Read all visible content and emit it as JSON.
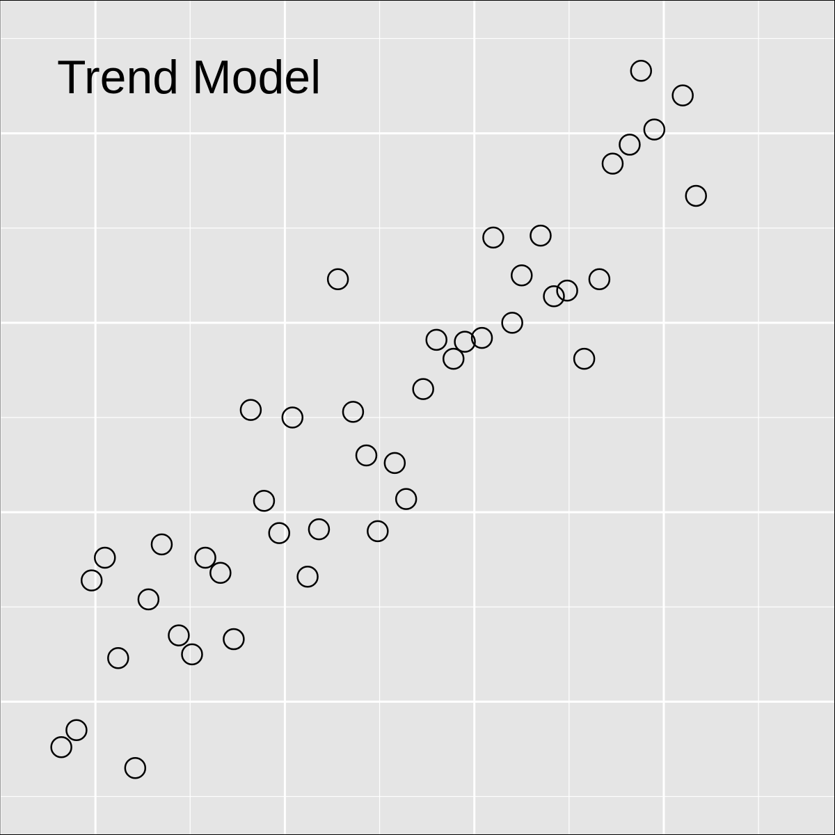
{
  "chart_data": {
    "type": "scatter",
    "title": "Trend Model",
    "xlabel": "",
    "ylabel": "",
    "xlim": [
      -0.5,
      3.9
    ],
    "ylim": [
      -0.7,
      3.7
    ],
    "x_major_ticks": [
      0,
      1,
      2,
      3
    ],
    "y_major_ticks": [
      0,
      1,
      2,
      3
    ],
    "grid": true,
    "legend": "none",
    "colors": {
      "panel_background": "#e5e5e5",
      "grid_line": "#ffffff",
      "point_stroke": "#000000",
      "point_fill": "none"
    },
    "points": [
      {
        "x": -0.18,
        "y": -0.24
      },
      {
        "x": -0.1,
        "y": -0.15
      },
      {
        "x": 0.21,
        "y": -0.35
      },
      {
        "x": -0.02,
        "y": 0.64
      },
      {
        "x": 0.05,
        "y": 0.76
      },
      {
        "x": 0.12,
        "y": 0.23
      },
      {
        "x": 0.28,
        "y": 0.54
      },
      {
        "x": 0.35,
        "y": 0.83
      },
      {
        "x": 0.44,
        "y": 0.35
      },
      {
        "x": 0.51,
        "y": 0.25
      },
      {
        "x": 0.58,
        "y": 0.76
      },
      {
        "x": 0.66,
        "y": 0.68
      },
      {
        "x": 0.73,
        "y": 0.33
      },
      {
        "x": 0.82,
        "y": 1.54
      },
      {
        "x": 0.89,
        "y": 1.06
      },
      {
        "x": 0.97,
        "y": 0.89
      },
      {
        "x": 1.04,
        "y": 1.5
      },
      {
        "x": 1.12,
        "y": 0.66
      },
      {
        "x": 1.18,
        "y": 0.91
      },
      {
        "x": 1.28,
        "y": 2.23
      },
      {
        "x": 1.36,
        "y": 1.53
      },
      {
        "x": 1.43,
        "y": 1.3
      },
      {
        "x": 1.49,
        "y": 0.9
      },
      {
        "x": 1.58,
        "y": 1.26
      },
      {
        "x": 1.64,
        "y": 1.07
      },
      {
        "x": 1.73,
        "y": 1.65
      },
      {
        "x": 1.8,
        "y": 1.91
      },
      {
        "x": 1.89,
        "y": 1.81
      },
      {
        "x": 1.95,
        "y": 1.9
      },
      {
        "x": 2.04,
        "y": 1.92
      },
      {
        "x": 2.1,
        "y": 2.45
      },
      {
        "x": 2.2,
        "y": 2.0
      },
      {
        "x": 2.25,
        "y": 2.25
      },
      {
        "x": 2.35,
        "y": 2.46
      },
      {
        "x": 2.42,
        "y": 2.14
      },
      {
        "x": 2.49,
        "y": 2.17
      },
      {
        "x": 2.58,
        "y": 1.81
      },
      {
        "x": 2.66,
        "y": 2.23
      },
      {
        "x": 2.73,
        "y": 2.84
      },
      {
        "x": 2.82,
        "y": 2.94
      },
      {
        "x": 2.88,
        "y": 3.33
      },
      {
        "x": 2.95,
        "y": 3.02
      },
      {
        "x": 3.1,
        "y": 3.2
      },
      {
        "x": 3.17,
        "y": 2.67
      }
    ]
  }
}
